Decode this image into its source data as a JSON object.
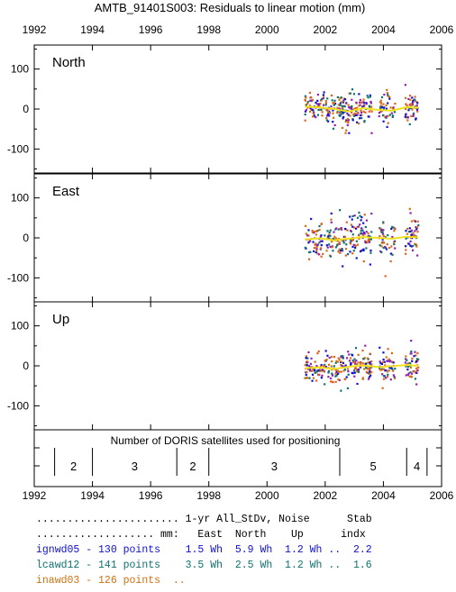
{
  "title": "AMTB_91401S003: Residuals to linear motion (mm)",
  "x_ticks": [
    "1992",
    "1994",
    "1996",
    "1998",
    "2000",
    "2002",
    "2004",
    "2006"
  ],
  "y_ticks": [
    "100",
    "0",
    "-100"
  ],
  "panels": [
    {
      "label": "North"
    },
    {
      "label": "East"
    },
    {
      "label": "Up"
    }
  ],
  "satellites": {
    "title": "Number of DORIS satellites used for positioning",
    "segments": [
      {
        "from": 1992.7,
        "to": 1994.0,
        "count": "2"
      },
      {
        "from": 1994.0,
        "to": 1996.9,
        "count": "3"
      },
      {
        "from": 1996.9,
        "to": 1998.0,
        "count": "2"
      },
      {
        "from": 1998.0,
        "to": 2002.5,
        "count": "3"
      },
      {
        "from": 2002.5,
        "to": 2004.8,
        "count": "5"
      },
      {
        "from": 2004.8,
        "to": 2005.5,
        "count": "4"
      }
    ]
  },
  "series_colors": {
    "ignwd05": "#1010d0",
    "lcawd12": "#107070",
    "inawd03": "#d07010",
    "extra_orange": "#e06020",
    "extra_purple": "#9020b0",
    "smooth": "#f0e020"
  },
  "stats": {
    "header1": "....................... 1-yr All_StDv, Noise      Stab",
    "header2": "................... mm:   East  North    Up      indx",
    "rows": [
      {
        "text": "ignwd05 - 130 points    1.5 Wh  5.9 Wh  1.2 Wh ..  2.2",
        "color": "#1010d0"
      },
      {
        "text": "lcawd12 - 141 points    3.5 Wh  2.5 Wh  1.2 Wh ..  1.6",
        "color": "#107070"
      },
      {
        "text": "inawd03 - 126 points  ..",
        "color": "#d07010"
      }
    ]
  },
  "chart_data": [
    {
      "type": "scatter",
      "title": "AMTB_91401S003: Residuals to linear motion (mm)",
      "panel": "North",
      "xlim": [
        1992,
        2006
      ],
      "ylim": [
        -160,
        160
      ],
      "y_ticks": [
        100,
        0,
        -100
      ],
      "data_span": [
        2001.3,
        2005.2
      ],
      "approx_spread_mm": [
        -60,
        85
      ],
      "smooth_curve": {
        "x": [
          2001.3,
          2001.8,
          2002.3,
          2002.8,
          2003.3,
          2003.8,
          2004.3,
          2004.8,
          2005.2
        ],
        "y": [
          6,
          4,
          0,
          -6,
          2,
          -2,
          -4,
          5,
          3
        ]
      }
    },
    {
      "type": "scatter",
      "panel": "East",
      "xlim": [
        1992,
        2006
      ],
      "ylim": [
        -160,
        160
      ],
      "y_ticks": [
        100,
        0,
        -100
      ],
      "data_span": [
        2001.3,
        2005.2
      ],
      "approx_spread_mm": [
        -100,
        90
      ],
      "smooth_curve": {
        "x": [
          2001.3,
          2001.8,
          2002.3,
          2002.8,
          2003.3,
          2003.8,
          2004.3,
          2004.8,
          2005.2
        ],
        "y": [
          -4,
          -1,
          -6,
          -2,
          2,
          0,
          -2,
          3,
          1
        ]
      }
    },
    {
      "type": "scatter",
      "panel": "Up",
      "xlim": [
        1992,
        2006
      ],
      "ylim": [
        -160,
        160
      ],
      "y_ticks": [
        100,
        0,
        -100
      ],
      "data_span": [
        2001.3,
        2005.2
      ],
      "approx_spread_mm": [
        -75,
        65
      ],
      "smooth_curve": {
        "x": [
          2001.3,
          2001.8,
          2002.3,
          2002.8,
          2003.3,
          2003.8,
          2004.3,
          2004.8,
          2005.2
        ],
        "y": [
          -6,
          -4,
          -8,
          -2,
          1,
          -3,
          -1,
          2,
          0
        ]
      }
    }
  ]
}
